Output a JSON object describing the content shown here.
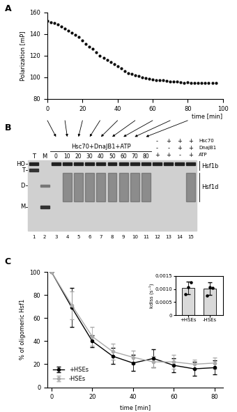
{
  "panel_labels": [
    "A",
    "B",
    "C"
  ],
  "chart_data": [
    {
      "type": "scatter",
      "marker": "o",
      "color": "#000000",
      "x": [
        0,
        2,
        4,
        6,
        8,
        10,
        12,
        14,
        16,
        18,
        20,
        22,
        24,
        26,
        28,
        30,
        32,
        34,
        36,
        38,
        40,
        42,
        44,
        46,
        48,
        50,
        52,
        54,
        56,
        58,
        60,
        62,
        64,
        66,
        68,
        70,
        72,
        74,
        76,
        78,
        80,
        82,
        84,
        86,
        88,
        90,
        92,
        94,
        96
      ],
      "values": [
        152,
        151,
        150,
        149,
        147,
        145,
        143,
        141,
        139,
        137,
        134,
        131,
        128,
        126,
        123,
        120,
        118,
        116,
        114,
        112,
        110,
        108,
        106,
        104,
        103,
        102,
        101,
        100,
        99,
        98.5,
        98,
        97.5,
        97,
        97,
        96.5,
        96,
        96,
        96,
        95.5,
        95,
        95.5,
        95,
        95,
        95,
        95,
        95,
        94.5,
        94.5,
        94.5
      ],
      "xlim": [
        0,
        100
      ],
      "xticks": [
        0,
        20,
        40,
        60,
        80,
        100
      ],
      "ylim": [
        80,
        160
      ],
      "yticks": [
        80,
        100,
        120,
        140,
        160
      ],
      "x_label": "time [min]",
      "y_label": "Polarization [mP]"
    },
    {
      "type": "line",
      "x": [
        0,
        10,
        20,
        30,
        40,
        50,
        60,
        70,
        80
      ],
      "series": [
        {
          "name": "+HSEs",
          "color": "#000000",
          "marker": "o",
          "values": [
            100,
            69,
            40,
            27,
            21,
            25,
            19,
            16,
            17
          ],
          "errors": [
            0,
            17,
            5,
            7,
            7,
            8,
            6,
            6,
            6
          ]
        },
        {
          "name": "-HSEs",
          "color": "#aaaaaa",
          "marker": "o",
          "values": [
            100,
            71,
            44,
            31,
            26,
            22,
            22,
            20,
            21
          ],
          "errors": [
            0,
            12,
            8,
            7,
            6,
            5,
            6,
            4,
            5
          ]
        }
      ],
      "xlim": [
        -2,
        84
      ],
      "xticks": [
        0,
        20,
        40,
        60,
        80
      ],
      "ylim": [
        0,
        100
      ],
      "yticks": [
        0,
        20,
        40,
        60,
        80,
        100
      ],
      "x_label": "time [min]",
      "y_label": "% of oligomeric Hsf1",
      "legend": "lower left"
    },
    {
      "type": "bar",
      "categories": [
        "+HSEs",
        "-HSEs"
      ],
      "color": "#d9d9d9",
      "values": [
        0.00105,
        0.00102
      ],
      "errors": [
        0.00024,
        0.00023
      ],
      "points": [
        [
          0.0008,
          0.00108,
          0.00126
        ],
        [
          0.00076,
          0.00108,
          0.00104
        ]
      ],
      "ylim": [
        0,
        0.0015
      ],
      "yticks": [
        0,
        0.0005,
        {
          "value": 0.001,
          "label": "0.0010"
        },
        0.0015
      ],
      "y_label": "kdiss (s⁻¹)"
    }
  ],
  "gel": {
    "marker_labels": [
      "HO",
      "T",
      "D",
      "M"
    ],
    "lanes": [
      "1",
      "2",
      "3",
      "4",
      "5",
      "6",
      "7",
      "8",
      "9",
      "10",
      "11",
      "12",
      "13",
      "14",
      "15"
    ],
    "lane_headers": [
      "T",
      "M"
    ],
    "treatment": "Hsc70+DnaJB1+ATP",
    "times": [
      "0",
      "10",
      "20",
      "30",
      "40",
      "50",
      "60",
      "70",
      "80"
    ],
    "control_rows": [
      "Hsc70",
      "DnaJB1",
      "ATP"
    ],
    "control_signs": [
      [
        "-",
        "+",
        "+",
        "+"
      ],
      [
        "-",
        "-",
        "+",
        "+"
      ],
      [
        "+",
        "+",
        "-",
        "+"
      ]
    ],
    "band_labels": [
      "Hsf1b",
      "Hsf1d"
    ]
  }
}
